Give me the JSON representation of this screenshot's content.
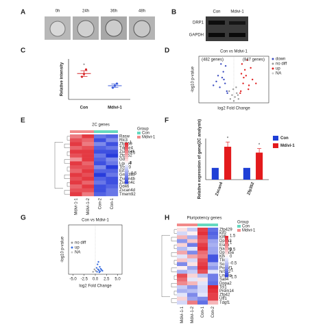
{
  "panel_labels": [
    "A",
    "B",
    "C",
    "D",
    "E",
    "F",
    "G",
    "H"
  ],
  "panel_a": {
    "timepoints": [
      "0h",
      "24h",
      "36h",
      "48h"
    ]
  },
  "panel_b": {
    "columns": [
      "Con",
      "Mdivi-1"
    ],
    "rows": [
      "DRP1",
      "GAPDH"
    ]
  },
  "chart_data": [
    {
      "type": "dot",
      "ylabel": "Relative intensity",
      "categories": [
        "Con",
        "Mdivi-1"
      ],
      "points": [
        [
          0.56,
          0.63,
          0.74
        ],
        [
          0.29,
          0.34,
          0.39
        ]
      ],
      "values": [
        0.64,
        0.34
      ],
      "errors": [
        0.07,
        0.04
      ],
      "ylim": [
        0,
        1
      ],
      "colors": [
        "#d62728",
        "#3b5bdb"
      ],
      "annotations": [
        "*"
      ]
    },
    {
      "type": "scatter",
      "title": "Con vs Mdivi-1",
      "xlabel": "log2 Fold Change",
      "ylabel": "-log10 p-value",
      "annotations": [
        "(482 genes)",
        "(847 genes)"
      ],
      "xlim": [
        -6,
        6
      ],
      "ylim": [
        0,
        12
      ],
      "series": [
        {
          "name": "down",
          "color": "#3b4cc0",
          "x": [
            -1.2,
            -1.5,
            -2.0,
            -2.4,
            -1.8,
            -3.0,
            -1.1,
            -2.7,
            -1.4,
            -3.5,
            -2.2,
            -1.7
          ],
          "y": [
            3,
            5,
            6.5,
            4,
            8,
            5.5,
            2.5,
            7,
            9.5,
            4.5,
            10,
            6
          ]
        },
        {
          "name": "no diff",
          "color": "#999999",
          "x": [
            -0.6,
            -0.3,
            0,
            0.2,
            0.5,
            0.8,
            -0.8,
            0.4,
            -0.1,
            0.7
          ],
          "y": [
            1,
            2,
            0.5,
            1.5,
            2.5,
            1,
            3,
            4,
            3.5,
            2
          ]
        },
        {
          "name": "up",
          "color": "#e02020",
          "x": [
            1.2,
            1.6,
            2.1,
            2.6,
            1.9,
            3.2,
            1.1,
            2.9,
            1.4,
            3.8,
            2.3,
            1.7,
            2.5,
            1.3
          ],
          "y": [
            3,
            5,
            7,
            4.5,
            8.5,
            6,
            2.5,
            9,
            10,
            5,
            11,
            6.5,
            3.5,
            7.5
          ]
        },
        {
          "name": "NA",
          "color": "#cccccc",
          "x": [],
          "y": []
        }
      ]
    },
    {
      "type": "heatmap",
      "title": "2C genes",
      "legend_title": "Group",
      "rows": [
        "Rasw",
        "Rlc3",
        "Zfp560",
        "Tdpoz4",
        "Zscan4f",
        "Zfp352",
        "Gdf2",
        "Lgals4",
        "Tcstv3",
        "Eif1a",
        "Gm4340",
        "Zscan4b",
        "Zscan4c",
        "Dd46",
        "Zscan4d",
        "Tmem92"
      ],
      "columns": [
        "Mdivi-1-1",
        "Mdivi-1-2",
        "Con-2",
        "Con-1"
      ],
      "column_groups": [
        "Mdivi-1",
        "Mdivi-1",
        "Con",
        "Con"
      ],
      "groups": [
        {
          "name": "Con",
          "color": "#66d9c0"
        },
        {
          "name": "Mdivi-1",
          "color": "#f28a8a"
        }
      ],
      "zlim": [
        -1,
        1
      ],
      "colorbar_ticks": [
        1,
        0.5,
        0,
        -0.5
      ],
      "values": [
        [
          0.6,
          0.9,
          -0.7,
          -0.8
        ],
        [
          0.8,
          0.7,
          -0.9,
          -0.6
        ],
        [
          0.9,
          0.6,
          -0.6,
          -0.9
        ],
        [
          0.7,
          0.8,
          -0.8,
          -0.7
        ],
        [
          0.9,
          0.9,
          -0.9,
          -0.9
        ],
        [
          0.8,
          0.9,
          -0.7,
          -1
        ],
        [
          0.5,
          0.9,
          -0.8,
          -0.6
        ],
        [
          0.9,
          0.7,
          -0.9,
          -0.7
        ],
        [
          0.8,
          0.8,
          -0.6,
          -1
        ],
        [
          0.7,
          0.9,
          -0.8,
          -0.8
        ],
        [
          0.9,
          0.8,
          -1,
          -0.7
        ],
        [
          0.8,
          0.9,
          -0.8,
          -0.9
        ],
        [
          0.9,
          0.7,
          -0.7,
          -0.9
        ],
        [
          0.7,
          0.9,
          -0.9,
          -0.8
        ],
        [
          0.8,
          0.8,
          -0.9,
          -0.7
        ],
        [
          0.9,
          0.6,
          -0.8,
          -0.7
        ]
      ]
    },
    {
      "type": "bar",
      "ylabel": "Relative expression of gene(2C analysis)",
      "categories": [
        "Zscan4",
        "Zfp352"
      ],
      "ylim": [
        0,
        3.5
      ],
      "annotations": [
        "*",
        "*"
      ],
      "series": [
        {
          "name": "Con",
          "color": "#1f3fd6",
          "values": [
            1,
            1
          ],
          "errors": [
            0,
            0
          ]
        },
        {
          "name": "Mdivi-1",
          "color": "#e31a1c",
          "values": [
            2.8,
            2.3
          ],
          "errors": [
            0.4,
            0.35
          ]
        }
      ]
    },
    {
      "type": "scatter",
      "title": "Con vs Mdivi-1",
      "xlabel": "log2 Fold Change",
      "ylabel": "-log10 p-value",
      "xlim": [
        -6,
        6
      ],
      "ylim": [
        0,
        10
      ],
      "xticks": [
        {
          "value": -5,
          "label": "-5.0"
        },
        {
          "value": -2.5,
          "label": "-2.5"
        },
        {
          "value": 0,
          "label": "0.0"
        },
        {
          "value": 2.5,
          "label": "2.5"
        },
        {
          "value": 5,
          "label": "5.0"
        }
      ],
      "series": [
        {
          "name": "no diff",
          "color": "#999999",
          "x": [
            -0.5,
            -0.2,
            0.1
          ],
          "y": [
            0.5,
            1,
            0.7
          ]
        },
        {
          "name": "up",
          "color": "#3b6ee0",
          "x": [
            0.4,
            0.6,
            0.8,
            1.0,
            1.2,
            0.5,
            0.9,
            1.4,
            0.7,
            1.1,
            0.3,
            1.6
          ],
          "y": [
            0.5,
            1,
            0.8,
            1.5,
            1.1,
            2,
            0.4,
            0.9,
            2.5,
            0.6,
            1.3,
            0.7
          ]
        },
        {
          "name": "NA",
          "color": "#cccccc",
          "x": [],
          "y": []
        }
      ]
    },
    {
      "type": "heatmap",
      "title": "Pluripotency genes",
      "legend_title": "Group",
      "rows": [
        "Zfp429",
        "Klf2",
        "Klf5",
        "Dppa3",
        "Esrrb",
        "Nanog",
        "Dppa5a",
        "Klf4",
        "Tbx3",
        "Sox2",
        "Pou5f1",
        "Nr5a2",
        "Lin28a",
        "Sall4",
        "Dppa2",
        "Tcl1",
        "Prdm14",
        "Zfp42",
        "Utf1",
        "Tdgf1"
      ],
      "columns": [
        "Mdivi-1-1",
        "Mdivi-1-2",
        "Con-1",
        "Con-2"
      ],
      "column_groups": [
        "Mdivi-1",
        "Mdivi-1",
        "Con",
        "Con"
      ],
      "groups": [
        {
          "name": "Con",
          "color": "#66d9c0"
        },
        {
          "name": "Mdivi-1",
          "color": "#f28a8a"
        }
      ],
      "zlim": [
        -1.5,
        1.5
      ],
      "colorbar_ticks": [
        1.5,
        1,
        0.5,
        0,
        -0.5,
        -1,
        -1.5
      ],
      "values": [
        [
          0.2,
          -0.4,
          1.3,
          -1.1
        ],
        [
          -0.3,
          0.1,
          1.4,
          -1.2
        ],
        [
          0.5,
          -0.6,
          1.2,
          -1.1
        ],
        [
          -0.8,
          0.4,
          1.1,
          -0.7
        ],
        [
          0.3,
          -1,
          1.3,
          -0.6
        ],
        [
          -0.5,
          -0.2,
          1.4,
          -0.7
        ],
        [
          0.6,
          -0.9,
          1.0,
          -0.7
        ],
        [
          -0.2,
          0.6,
          0.9,
          -1.3
        ],
        [
          0.4,
          -0.3,
          1.2,
          -1.3
        ],
        [
          -0.9,
          0.2,
          1.3,
          -0.6
        ],
        [
          0.1,
          -0.7,
          1.4,
          -0.8
        ],
        [
          -0.6,
          -0.4,
          1.2,
          -0.2
        ],
        [
          1.2,
          0.3,
          -0.5,
          -1
        ],
        [
          1.0,
          -0.2,
          0.2,
          -1
        ],
        [
          0.8,
          0.5,
          -0.2,
          -1.1
        ],
        [
          -0.4,
          -0.8,
          -0.3,
          1.5
        ],
        [
          -0.6,
          -0.5,
          -0.3,
          1.4
        ],
        [
          -0.2,
          -0.9,
          -0.2,
          1.3
        ],
        [
          0.3,
          -0.7,
          -0.9,
          1.3
        ],
        [
          -0.3,
          0.9,
          -1.1,
          0.5
        ]
      ]
    }
  ]
}
